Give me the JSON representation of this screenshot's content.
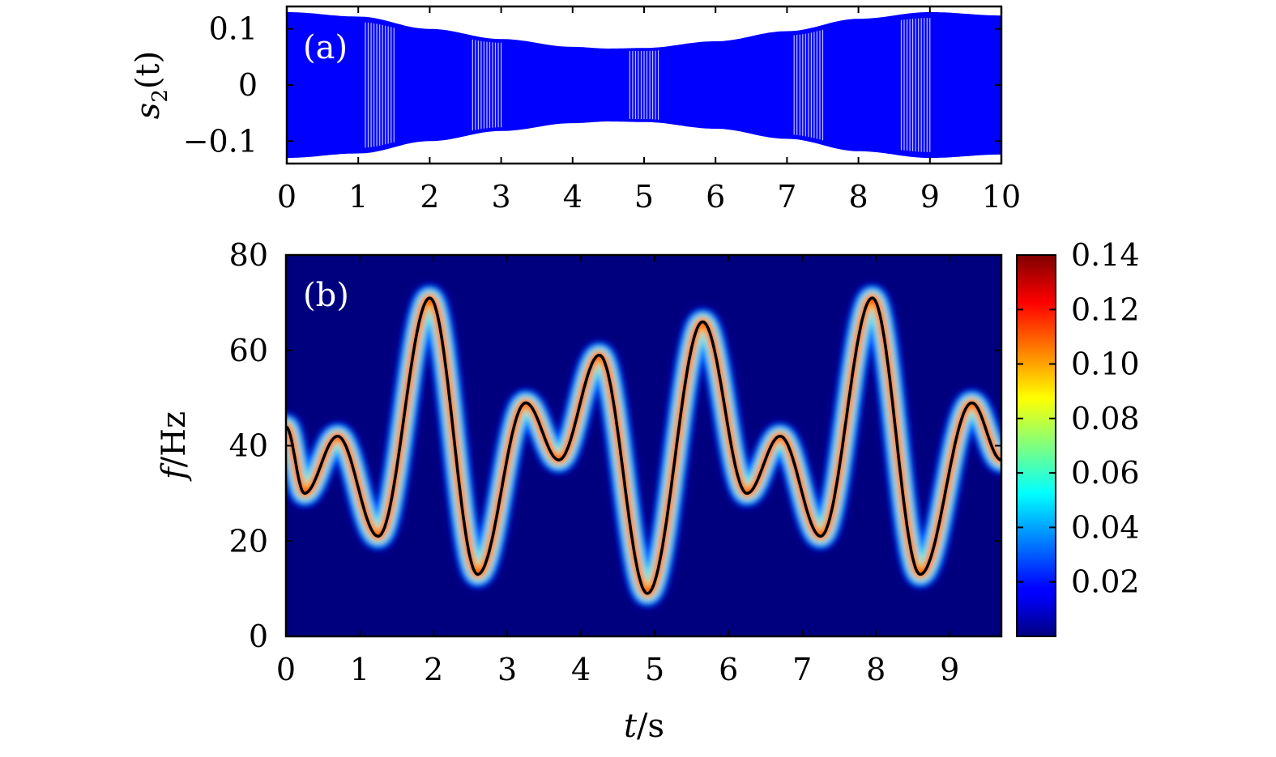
{
  "chart_data": [
    {
      "panel": "(a)",
      "type": "line",
      "xlabel": "",
      "ylabel": "s2(t)",
      "ylabel_main": "s",
      "ylabel_sub": "2",
      "ylabel_arg": "(t)",
      "xlim": [
        0,
        10
      ],
      "ylim": [
        -0.14,
        0.14
      ],
      "xticks": [
        "0",
        "1",
        "2",
        "3",
        "4",
        "5",
        "6",
        "7",
        "8",
        "9",
        "10"
      ],
      "yticks": [
        {
          "value": 0.1,
          "label": "0.1"
        },
        {
          "value": 0,
          "label": "0"
        },
        {
          "value": -0.1,
          "label": "−0.1"
        }
      ],
      "series_color": "#0000ff",
      "envelope": {
        "t": [
          0,
          1,
          2,
          3,
          4,
          4.5,
          5,
          6,
          7,
          8,
          9,
          10
        ],
        "amplitude": [
          0.13,
          0.122,
          0.1,
          0.082,
          0.068,
          0.065,
          0.066,
          0.078,
          0.096,
          0.118,
          0.13,
          0.124
        ]
      },
      "dense_regions": [
        1.3,
        2.8,
        5.0,
        7.3,
        8.8
      ]
    },
    {
      "panel": "(b)",
      "type": "heatmap",
      "xlabel": "t/s",
      "xlabel_var": "t",
      "xlabel_unit": "/s",
      "ylabel": "f/Hz",
      "ylabel_var": "f",
      "ylabel_unit": "/Hz",
      "xlim": [
        0,
        9.7
      ],
      "ylim": [
        0,
        80
      ],
      "xticks": [
        "0",
        "1",
        "2",
        "3",
        "4",
        "5",
        "6",
        "7",
        "8",
        "9"
      ],
      "yticks": [
        "0",
        "20",
        "40",
        "60",
        "80"
      ],
      "ridge_color": "#000000",
      "background_color": "#00007f",
      "ridge": {
        "t": [
          0.0,
          0.25,
          0.7,
          1.25,
          1.95,
          2.6,
          3.25,
          3.7,
          4.25,
          4.9,
          5.65,
          6.25,
          6.7,
          7.25,
          7.95,
          8.6,
          9.3,
          9.7
        ],
        "f": [
          44,
          30,
          42,
          21,
          71,
          13,
          49,
          37,
          59,
          9,
          66,
          30,
          42,
          21,
          71,
          13,
          49,
          37
        ]
      },
      "colorbar": {
        "range": [
          0,
          0.14
        ],
        "ticks": [
          "0.02",
          "0.04",
          "0.06",
          "0.08",
          "0.10",
          "0.12",
          "0.14"
        ],
        "colormap": "jet"
      }
    }
  ]
}
